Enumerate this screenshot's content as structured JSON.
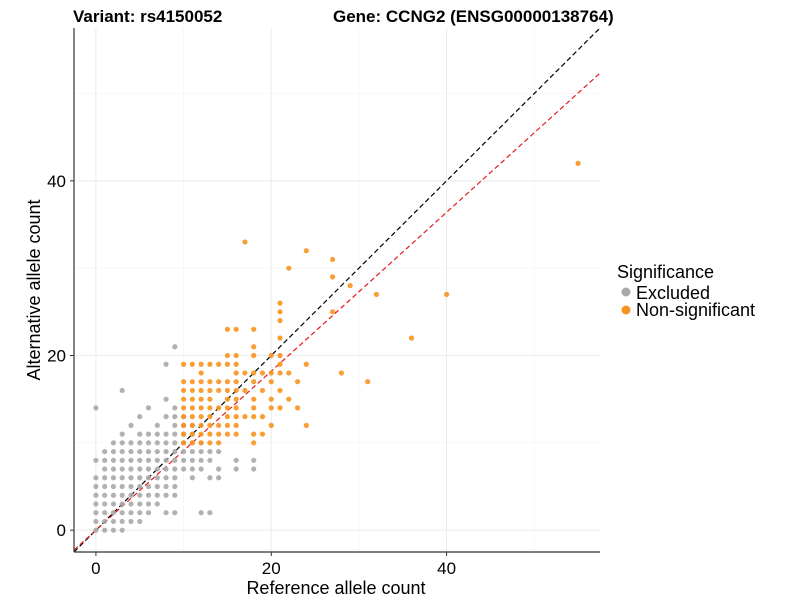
{
  "chart_data": {
    "type": "scatter",
    "title_left": "Variant: rs4150052",
    "title_right": "Gene: CCNG2 (ENSG00000138764)",
    "xlabel": "Reference allele count",
    "ylabel": "Alternative allele count",
    "xlim": [
      -2.5,
      57.5
    ],
    "ylim": [
      -2.5,
      57.5
    ],
    "x_ticks": [
      0,
      20,
      40
    ],
    "y_ticks": [
      0,
      20,
      40
    ],
    "grid": true,
    "legend": {
      "title": "Significance",
      "position": "right",
      "entries": [
        {
          "label": "Excluded",
          "color": "#a9a9a9"
        },
        {
          "label": "Non-significant",
          "color": "#f7931e"
        }
      ]
    },
    "reference_lines": [
      {
        "name": "identity",
        "slope": 1.0,
        "intercept": 0,
        "color": "#000000",
        "style": "dashed"
      },
      {
        "name": "fit",
        "slope": 0.91,
        "intercept": 0,
        "color": "#e41a1c",
        "style": "dashed"
      }
    ],
    "series": [
      {
        "name": "Excluded",
        "color": "#a9a9a9",
        "points": [
          [
            0,
            0
          ],
          [
            0,
            1
          ],
          [
            0,
            2
          ],
          [
            0,
            3
          ],
          [
            0,
            4
          ],
          [
            0,
            5
          ],
          [
            0,
            6
          ],
          [
            0,
            8
          ],
          [
            0,
            14
          ],
          [
            1,
            0
          ],
          [
            1,
            1
          ],
          [
            1,
            2
          ],
          [
            1,
            3
          ],
          [
            1,
            4
          ],
          [
            1,
            5
          ],
          [
            1,
            6
          ],
          [
            1,
            7
          ],
          [
            1,
            8
          ],
          [
            1,
            9
          ],
          [
            2,
            0
          ],
          [
            2,
            1
          ],
          [
            2,
            2
          ],
          [
            2,
            3
          ],
          [
            2,
            4
          ],
          [
            2,
            5
          ],
          [
            2,
            6
          ],
          [
            2,
            7
          ],
          [
            2,
            8
          ],
          [
            2,
            9
          ],
          [
            2,
            10
          ],
          [
            3,
            0
          ],
          [
            3,
            1
          ],
          [
            3,
            2
          ],
          [
            3,
            3
          ],
          [
            3,
            4
          ],
          [
            3,
            5
          ],
          [
            3,
            6
          ],
          [
            3,
            7
          ],
          [
            3,
            8
          ],
          [
            3,
            9
          ],
          [
            3,
            10
          ],
          [
            3,
            11
          ],
          [
            3,
            16
          ],
          [
            4,
            1
          ],
          [
            4,
            2
          ],
          [
            4,
            3
          ],
          [
            4,
            4
          ],
          [
            4,
            5
          ],
          [
            4,
            6
          ],
          [
            4,
            7
          ],
          [
            4,
            8
          ],
          [
            4,
            9
          ],
          [
            4,
            10
          ],
          [
            4,
            12
          ],
          [
            5,
            1
          ],
          [
            5,
            2
          ],
          [
            5,
            3
          ],
          [
            5,
            4
          ],
          [
            5,
            5
          ],
          [
            5,
            6
          ],
          [
            5,
            7
          ],
          [
            5,
            8
          ],
          [
            5,
            9
          ],
          [
            5,
            10
          ],
          [
            5,
            11
          ],
          [
            5,
            13
          ],
          [
            6,
            2
          ],
          [
            6,
            3
          ],
          [
            6,
            4
          ],
          [
            6,
            5
          ],
          [
            6,
            6
          ],
          [
            6,
            7
          ],
          [
            6,
            8
          ],
          [
            6,
            9
          ],
          [
            6,
            10
          ],
          [
            6,
            11
          ],
          [
            6,
            14
          ],
          [
            7,
            3
          ],
          [
            7,
            4
          ],
          [
            7,
            5
          ],
          [
            7,
            6
          ],
          [
            7,
            7
          ],
          [
            7,
            8
          ],
          [
            7,
            9
          ],
          [
            7,
            10
          ],
          [
            7,
            11
          ],
          [
            7,
            12
          ],
          [
            8,
            2
          ],
          [
            8,
            4
          ],
          [
            8,
            5
          ],
          [
            8,
            6
          ],
          [
            8,
            7
          ],
          [
            8,
            8
          ],
          [
            8,
            9
          ],
          [
            8,
            10
          ],
          [
            8,
            11
          ],
          [
            8,
            13
          ],
          [
            8,
            15
          ],
          [
            8,
            19
          ],
          [
            9,
            2
          ],
          [
            9,
            4
          ],
          [
            9,
            5
          ],
          [
            9,
            6
          ],
          [
            9,
            7
          ],
          [
            9,
            8
          ],
          [
            9,
            9
          ],
          [
            9,
            10
          ],
          [
            9,
            11
          ],
          [
            9,
            12
          ],
          [
            9,
            13
          ],
          [
            9,
            14
          ],
          [
            9,
            21
          ],
          [
            10,
            7
          ],
          [
            10,
            8
          ],
          [
            10,
            9
          ],
          [
            10,
            10
          ],
          [
            10,
            11
          ],
          [
            10,
            12
          ],
          [
            10,
            13
          ],
          [
            11,
            6
          ],
          [
            11,
            7
          ],
          [
            11,
            8
          ],
          [
            11,
            9
          ],
          [
            11,
            10
          ],
          [
            11,
            11
          ],
          [
            11,
            12
          ],
          [
            12,
            2
          ],
          [
            12,
            7
          ],
          [
            12,
            8
          ],
          [
            12,
            9
          ],
          [
            12,
            10
          ],
          [
            13,
            2
          ],
          [
            13,
            6
          ],
          [
            13,
            8
          ],
          [
            13,
            9
          ],
          [
            14,
            6
          ],
          [
            14,
            7
          ],
          [
            14,
            9
          ],
          [
            16,
            7
          ],
          [
            16,
            8
          ],
          [
            18,
            7
          ],
          [
            18,
            8
          ]
        ]
      },
      {
        "name": "Non-significant",
        "color": "#f7931e",
        "points": [
          [
            10,
            10
          ],
          [
            10,
            11
          ],
          [
            10,
            12
          ],
          [
            10,
            13
          ],
          [
            10,
            14
          ],
          [
            10,
            15
          ],
          [
            10,
            16
          ],
          [
            10,
            17
          ],
          [
            10,
            19
          ],
          [
            11,
            10
          ],
          [
            11,
            11
          ],
          [
            11,
            12
          ],
          [
            11,
            13
          ],
          [
            11,
            14
          ],
          [
            11,
            15
          ],
          [
            11,
            16
          ],
          [
            11,
            17
          ],
          [
            11,
            19
          ],
          [
            12,
            10
          ],
          [
            12,
            11
          ],
          [
            12,
            12
          ],
          [
            12,
            13
          ],
          [
            12,
            14
          ],
          [
            12,
            15
          ],
          [
            12,
            16
          ],
          [
            12,
            17
          ],
          [
            12,
            18
          ],
          [
            12,
            19
          ],
          [
            13,
            10
          ],
          [
            13,
            11
          ],
          [
            13,
            12
          ],
          [
            13,
            13
          ],
          [
            13,
            14
          ],
          [
            13,
            15
          ],
          [
            13,
            16
          ],
          [
            13,
            17
          ],
          [
            13,
            19
          ],
          [
            14,
            10
          ],
          [
            14,
            11
          ],
          [
            14,
            12
          ],
          [
            14,
            14
          ],
          [
            14,
            16
          ],
          [
            14,
            17
          ],
          [
            14,
            19
          ],
          [
            15,
            11
          ],
          [
            15,
            12
          ],
          [
            15,
            13
          ],
          [
            15,
            14
          ],
          [
            15,
            15
          ],
          [
            15,
            16
          ],
          [
            15,
            17
          ],
          [
            15,
            19
          ],
          [
            15,
            20
          ],
          [
            15,
            23
          ],
          [
            16,
            11
          ],
          [
            16,
            12
          ],
          [
            16,
            13
          ],
          [
            16,
            14
          ],
          [
            16,
            15
          ],
          [
            16,
            16
          ],
          [
            16,
            17
          ],
          [
            16,
            18
          ],
          [
            16,
            19
          ],
          [
            16,
            20
          ],
          [
            16,
            23
          ],
          [
            17,
            13
          ],
          [
            17,
            16
          ],
          [
            17,
            18
          ],
          [
            17,
            33
          ],
          [
            18,
            10
          ],
          [
            18,
            11
          ],
          [
            18,
            13
          ],
          [
            18,
            14
          ],
          [
            18,
            15
          ],
          [
            18,
            17
          ],
          [
            18,
            18
          ],
          [
            18,
            20
          ],
          [
            18,
            21
          ],
          [
            18,
            23
          ],
          [
            19,
            11
          ],
          [
            19,
            13
          ],
          [
            19,
            16
          ],
          [
            19,
            18
          ],
          [
            20,
            12
          ],
          [
            20,
            14
          ],
          [
            20,
            15
          ],
          [
            20,
            17
          ],
          [
            20,
            18
          ],
          [
            20,
            20
          ],
          [
            21,
            14
          ],
          [
            21,
            16
          ],
          [
            21,
            18
          ],
          [
            21,
            19
          ],
          [
            21,
            20
          ],
          [
            21,
            22
          ],
          [
            21,
            24
          ],
          [
            21,
            25
          ],
          [
            21,
            26
          ],
          [
            22,
            15
          ],
          [
            22,
            18
          ],
          [
            22,
            30
          ],
          [
            23,
            14
          ],
          [
            23,
            17
          ],
          [
            24,
            12
          ],
          [
            24,
            19
          ],
          [
            24,
            32
          ],
          [
            27,
            25
          ],
          [
            27,
            29
          ],
          [
            27,
            31
          ],
          [
            28,
            18
          ],
          [
            29,
            28
          ],
          [
            31,
            17
          ],
          [
            32,
            27
          ],
          [
            36,
            22
          ],
          [
            40,
            27
          ],
          [
            55,
            42
          ]
        ]
      }
    ]
  }
}
